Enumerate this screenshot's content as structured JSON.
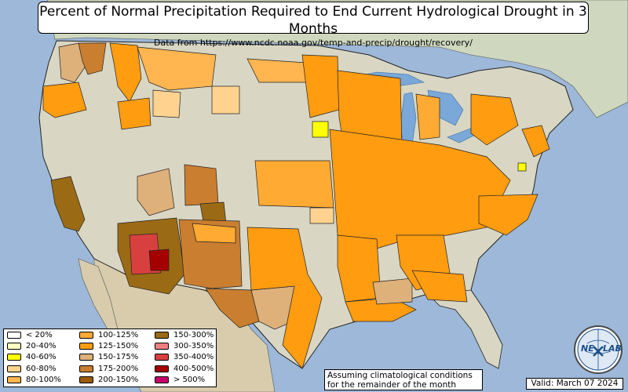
{
  "title": "Percent of Normal Precipitation Required to End Current Hydrological Drought in 3 Months",
  "subtitle": "Data from https://www.ncdc.noaa.gov/temp-and-precip/drought/recovery/",
  "legend": {
    "items": [
      {
        "label": "< 20%",
        "color": "#ffffff"
      },
      {
        "label": "20-40%",
        "color": "#ffffc0"
      },
      {
        "label": "40-60%",
        "color": "#ffff00"
      },
      {
        "label": "60-80%",
        "color": "#ffd38f"
      },
      {
        "label": "80-100%",
        "color": "#ffb550"
      },
      {
        "label": "100-125%",
        "color": "#ffaa33"
      },
      {
        "label": "125-150%",
        "color": "#ff9c10"
      },
      {
        "label": "150-175%",
        "color": "#deb07a"
      },
      {
        "label": "175-200%",
        "color": "#c97e30"
      },
      {
        "label": "200-150%",
        "color": "#9b5b06"
      },
      {
        "label": "150-300%",
        "color": "#9b6a14"
      },
      {
        "label": "300-350%",
        "color": "#f08080"
      },
      {
        "label": "350-400%",
        "color": "#d84040"
      },
      {
        "label": "400-500%",
        "color": "#a50000"
      },
      {
        "label": "> 500%",
        "color": "#c4006a"
      }
    ]
  },
  "note": {
    "line1": "Assuming climatological conditions",
    "line2": "for the remainder of the month"
  },
  "valid": "Valid: March 07 2024",
  "logo": {
    "text_left": "NE",
    "text_right": "LAB"
  },
  "colors": {
    "ocean": "#9db8d8",
    "land": "#d9d7c4",
    "canada": "#cfd8bf",
    "mexico": "#d8ccad",
    "lake": "#7aa8d8"
  }
}
